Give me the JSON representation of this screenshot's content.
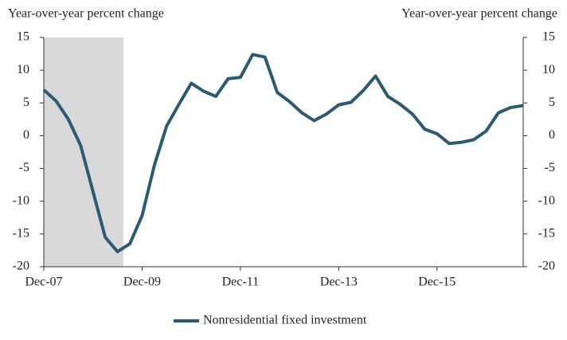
{
  "chart_data": {
    "type": "line",
    "ylabel": "Year-over-year percent change",
    "y2label": "Year-over-year percent change",
    "categories": [
      "Dec-07",
      null,
      null,
      null,
      null,
      null,
      null,
      null,
      "Dec-09",
      null,
      null,
      null,
      null,
      null,
      null,
      null,
      "Dec-11",
      null,
      null,
      null,
      null,
      null,
      null,
      null,
      "Dec-13",
      null,
      null,
      null,
      null,
      null,
      null,
      null,
      "Dec-15",
      null,
      null,
      null,
      null,
      null,
      null,
      null
    ],
    "series": [
      {
        "name": "Nonresidential fixed investment",
        "color": "#2a5b73",
        "values": [
          7.0,
          5.3,
          2.5,
          -1.5,
          -8.5,
          -15.5,
          -17.7,
          -16.5,
          -12.2,
          -4.5,
          1.5,
          4.8,
          8.0,
          6.8,
          6.0,
          8.7,
          8.9,
          12.4,
          12.0,
          6.6,
          5.2,
          3.5,
          2.3,
          3.3,
          4.7,
          5.1,
          6.9,
          9.1,
          6.0,
          4.8,
          3.3,
          1.0,
          0.3,
          -1.2,
          -1.0,
          -0.6,
          0.7,
          3.5,
          4.3,
          4.6
        ]
      }
    ],
    "ylim": [
      -20,
      15
    ],
    "yticks": [
      -20,
      -15,
      -10,
      -5,
      0,
      5,
      10,
      15
    ],
    "y2lim": [
      -20,
      15
    ],
    "y2ticks": [
      -20,
      -15,
      -10,
      -5,
      0,
      5,
      10,
      15
    ],
    "legend": "bottom"
  }
}
